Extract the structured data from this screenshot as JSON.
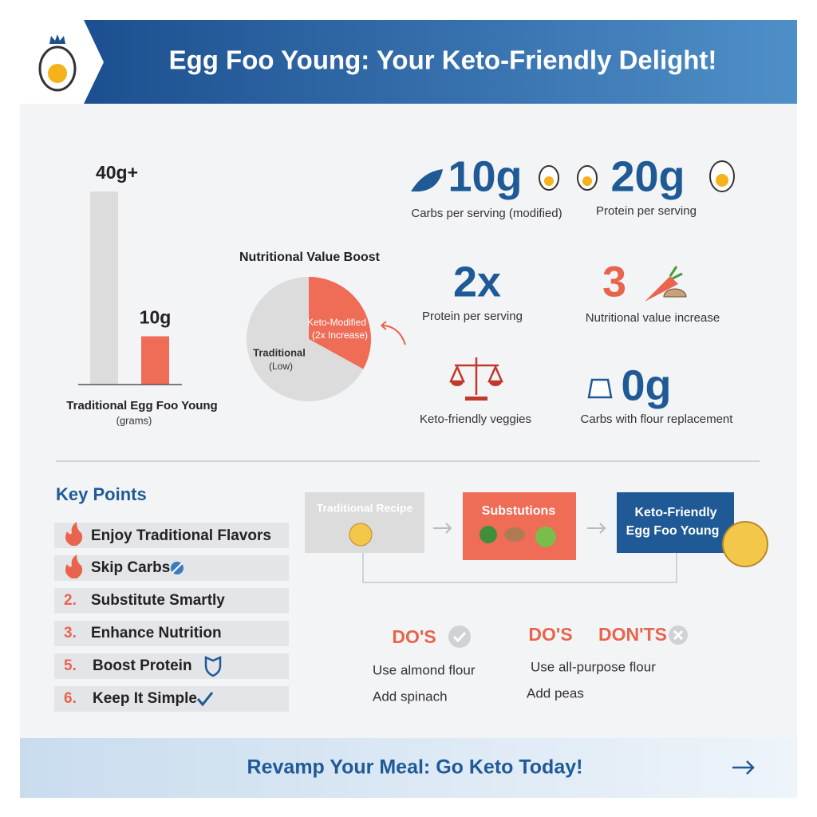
{
  "header": {
    "title": "Egg Foo Young: Your Keto-Friendly Delight!"
  },
  "chart_data": [
    {
      "type": "bar",
      "categories": [
        null,
        null
      ],
      "values": [
        40,
        10
      ],
      "value_labels": [
        "40g+",
        "10g"
      ],
      "colors": [
        "#dcdcdc",
        "#ef6c57"
      ],
      "ylim": [
        0,
        40
      ],
      "xlabel": "Traditional Egg Foo Young",
      "xlabel_note": "(grams)"
    },
    {
      "type": "pie",
      "title": "Nutritional Value Boost",
      "categories": [
        "Keto-Modified",
        "Traditional"
      ],
      "category_notes": [
        "(2x Increase)",
        "(Low)"
      ],
      "values": [
        33,
        67
      ],
      "colors": [
        "#ef6c57",
        "#dcdcdc"
      ]
    }
  ],
  "stats": [
    {
      "value": "10g",
      "label": "Carbs per serving (modified)"
    },
    {
      "value": "20g",
      "label": "Protein per serving"
    },
    {
      "value": "2x",
      "label": "Protein per serving"
    },
    {
      "value": "3",
      "label": "Nutritional value increase"
    },
    {
      "label": "Keto-friendly veggies"
    },
    {
      "value": "0g",
      "label": "Carbs with flour replacement"
    }
  ],
  "key_points": {
    "title": "Key Points",
    "items": [
      {
        "text": "Enjoy Traditional Flavors"
      },
      {
        "text": "Skip Carbs"
      },
      {
        "marker": "2.",
        "text": "Substitute Smartly"
      },
      {
        "marker": "3.",
        "text": "Enhance Nutrition"
      },
      {
        "marker": "5.",
        "text": "Boost Protein"
      },
      {
        "marker": "6.",
        "text": "Keep It Simple"
      }
    ]
  },
  "flow": [
    "Traditional Recipe",
    "Substutions",
    [
      "Keto-Friendly",
      "Egg Foo Young"
    ]
  ],
  "dos": {
    "heading": "DO'S",
    "items": [
      "Use almond flour",
      "Add spinach"
    ]
  },
  "donts": {
    "dos_heading": "DO'S",
    "heading": "DON'TS",
    "items": [
      "Use all-purpose flour",
      "Add peas"
    ]
  },
  "footer": {
    "text": "Revamp Your Meal: Go Keto Today!"
  }
}
